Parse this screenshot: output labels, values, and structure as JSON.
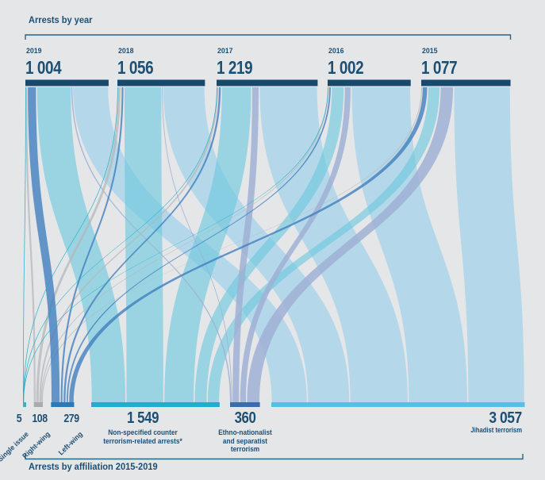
{
  "titles": {
    "top": "Arrests by year",
    "bottom": "Arrests by affiliation 2015-2019"
  },
  "colors": {
    "background": "#e5e6e8",
    "year_bar": "#164a6e",
    "text": "#1c4f74",
    "bracket": "#2a6285"
  },
  "chart_data": {
    "type": "sankey",
    "top_axis_label": "Arrests by year",
    "bottom_axis_label": "Arrests by affiliation 2015-2019",
    "years": [
      {
        "label": "2019",
        "total": 1004,
        "display": "1 004"
      },
      {
        "label": "2018",
        "total": 1056,
        "display": "1 056"
      },
      {
        "label": "2017",
        "total": 1219,
        "display": "1 219"
      },
      {
        "label": "2016",
        "total": 1002,
        "display": "1 002"
      },
      {
        "label": "2015",
        "total": 1077,
        "display": "1 077"
      }
    ],
    "categories": [
      {
        "label": "Single issue",
        "label_lines": [
          "Single issue"
        ],
        "total": 5,
        "display": "5",
        "flow_color": "#21adc4",
        "flow_opacity": 0.9,
        "bar_color": "#35b2cb"
      },
      {
        "label": "Right-wing",
        "label_lines": [
          "Right-wing"
        ],
        "total": 108,
        "display": "108",
        "flow_color": "#b4b6b8",
        "flow_opacity": 0.72,
        "bar_color": "#a9abad"
      },
      {
        "label": "Left-wing",
        "label_lines": [
          "Left-wing"
        ],
        "total": 279,
        "display": "279",
        "flow_color": "#3f7cbe",
        "flow_opacity": 0.78,
        "bar_color": "#2e78b6"
      },
      {
        "label": "Non-specified counter terrorism-related arrests*",
        "label_lines": [
          "Non-specified counter",
          "terrorism-related arrests*"
        ],
        "total": 1549,
        "display": "1 549",
        "flow_color": "#6cc8de",
        "flow_opacity": 0.62,
        "bar_color": "#21adcf"
      },
      {
        "label": "Ethno-nationalist and separatist terrorism",
        "label_lines": [
          "Ethno-nationalist",
          "and separatist",
          "terrorism"
        ],
        "total": 360,
        "display": "360",
        "flow_color": "#9fb0d4",
        "flow_opacity": 0.85,
        "bar_color": "#3a6cb0"
      },
      {
        "label": "Jihadist terrorism",
        "label_lines": [
          "Jihadist terrorism"
        ],
        "total": 3057,
        "display": "3 057",
        "flow_color": "#a8d4e9",
        "flow_opacity": 0.82,
        "bar_color": "#54c0e6"
      }
    ],
    "flows_note": "rows = years (2019..2015), cols = categories (single, right-wing, left-wing, non-specified, ethno-nationalist, jihadist); values estimated from flow widths",
    "flows": [
      [
        2,
        21,
        111,
        419,
        15,
        436
      ],
      [
        1,
        44,
        34,
        457,
        9,
        511
      ],
      [
        1,
        20,
        36,
        366,
        91,
        705
      ],
      [
        1,
        12,
        31,
        157,
        83,
        718
      ],
      [
        0,
        11,
        67,
        150,
        162,
        687
      ]
    ]
  }
}
